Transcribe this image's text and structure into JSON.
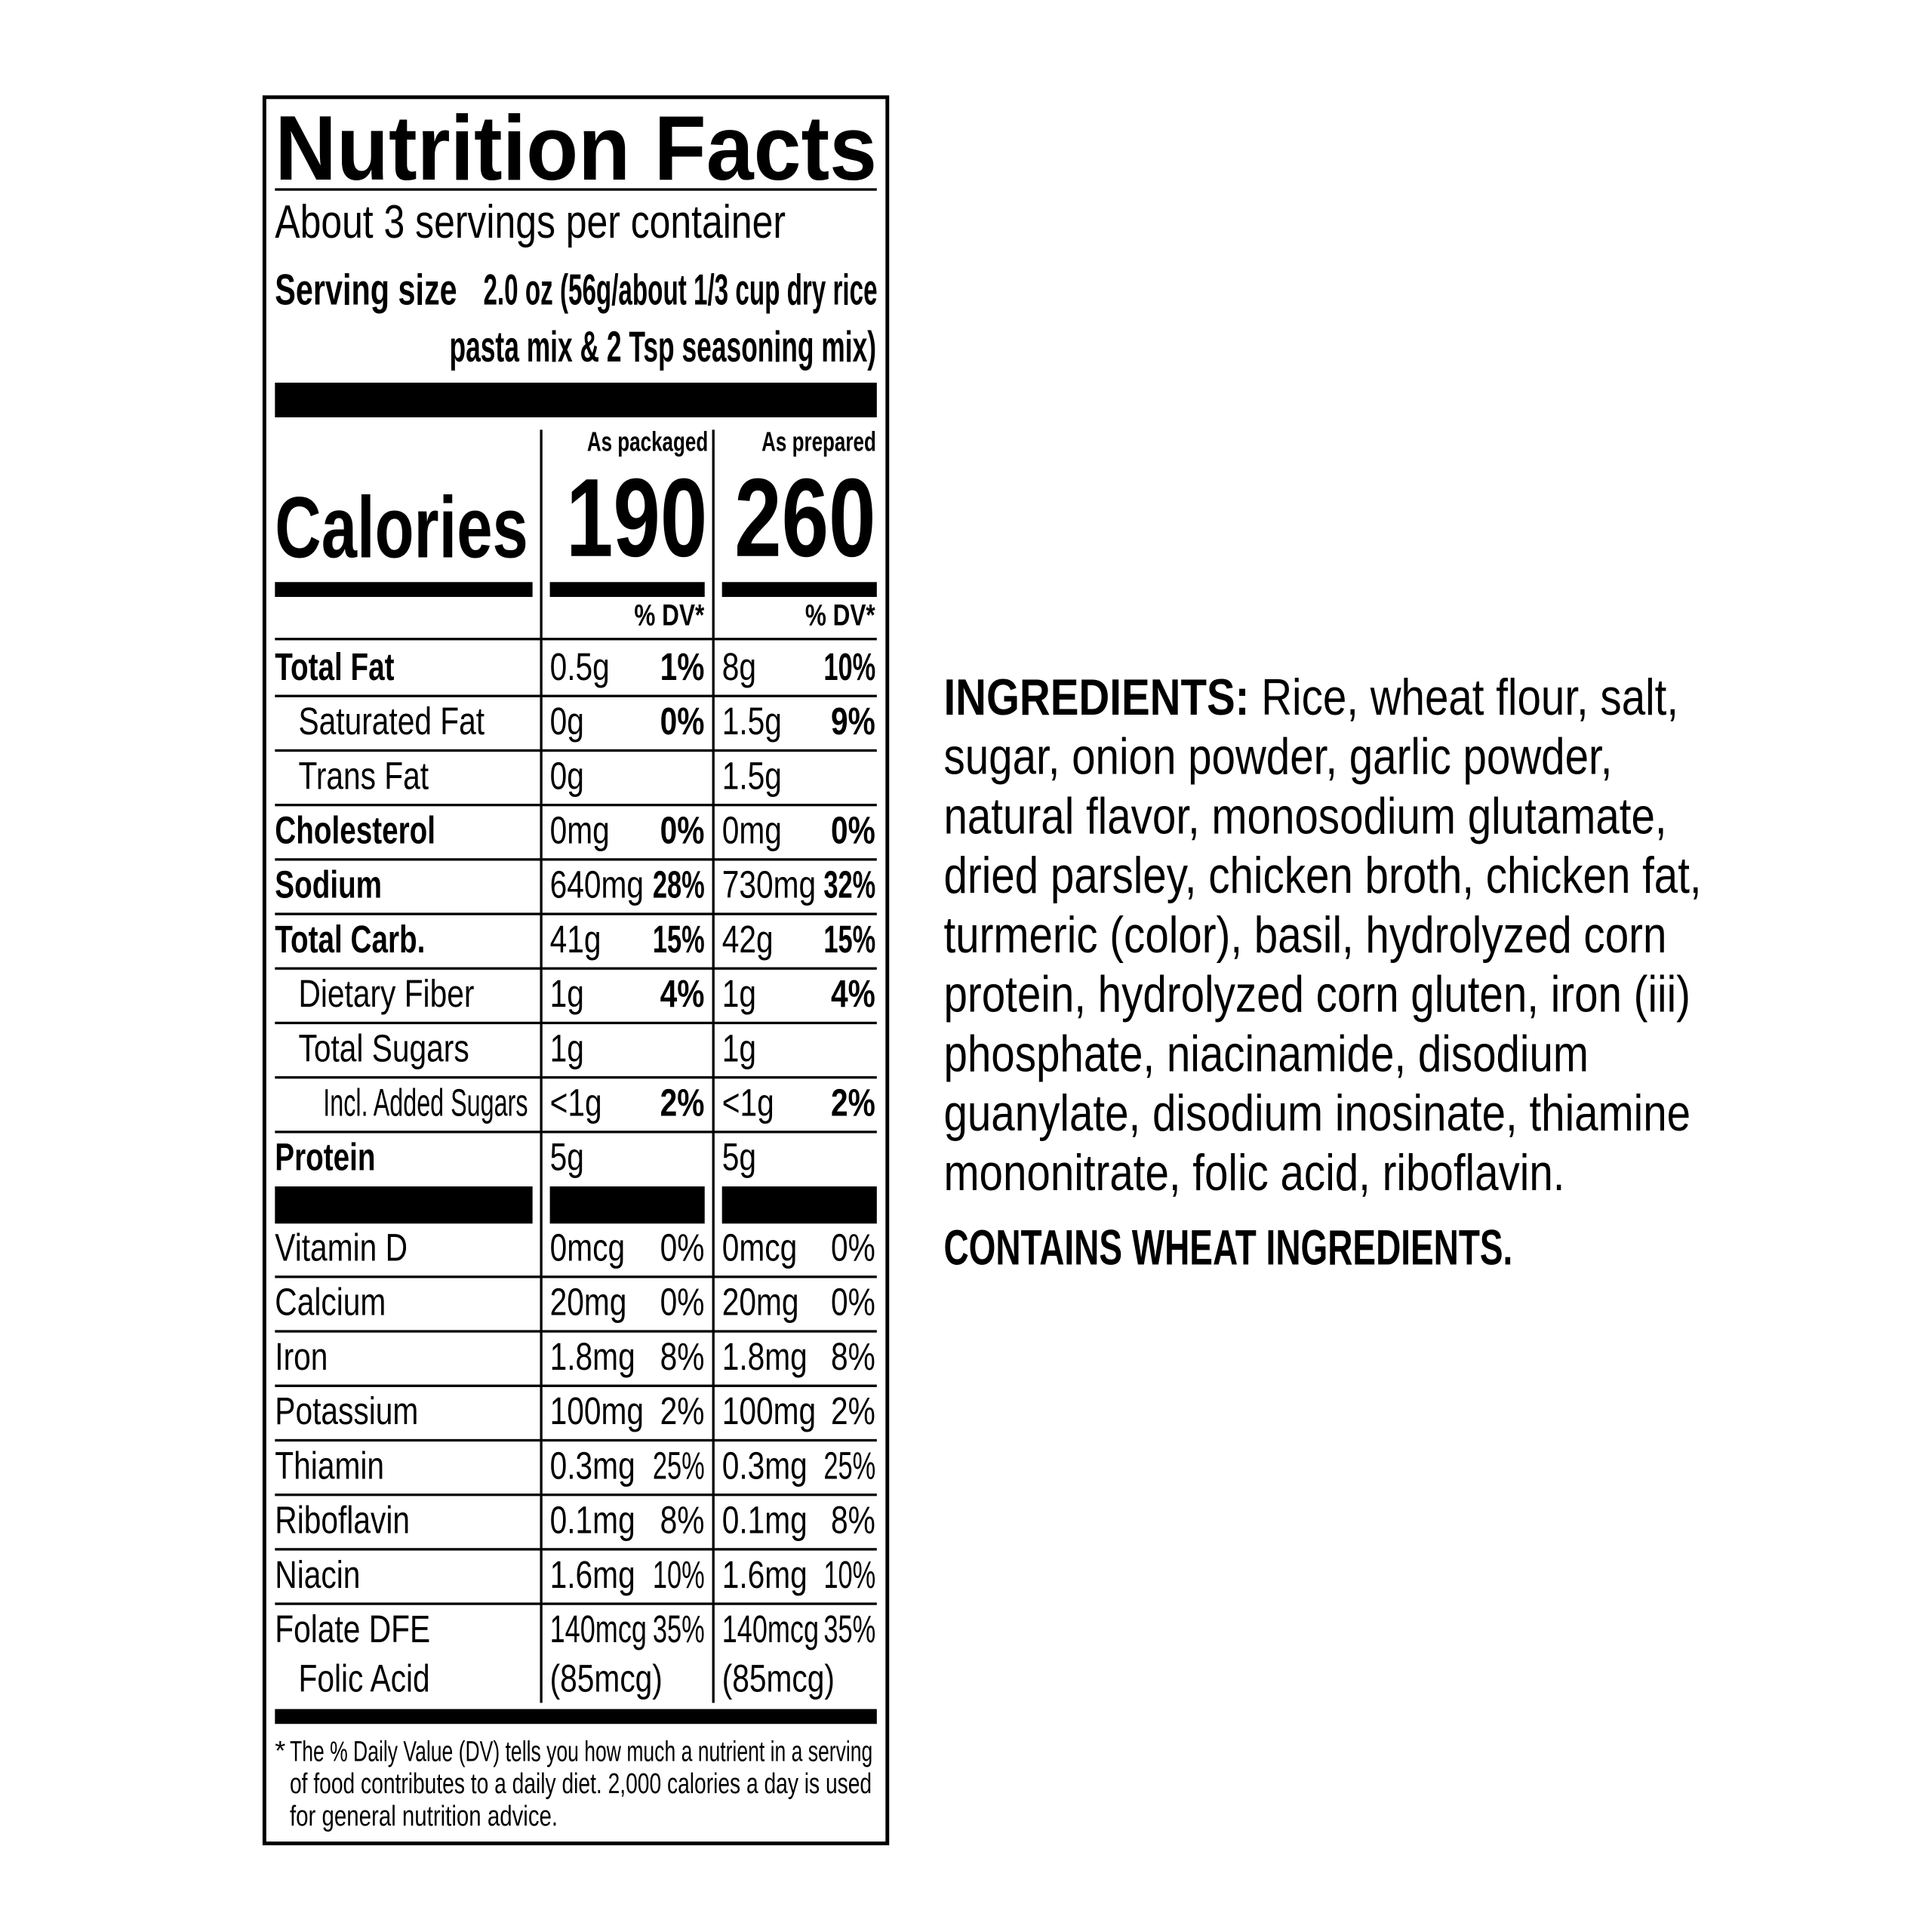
{
  "label": {
    "title": "Nutrition Facts",
    "servings": "About 3 servings per container",
    "serving_size_label": "Serving size",
    "serving_size_line1": "2.0 oz (56g/about 1/3 cup dry rice",
    "serving_size_line2": "pasta mix & 2 Tsp seasoning mix)",
    "col_packaged": "As packaged",
    "col_prepared": "As prepared",
    "calories_label": "Calories",
    "calories_packaged": "190",
    "calories_prepared": "260",
    "dv_header": "% DV*",
    "nutrients": [
      {
        "name": "Total Fat",
        "bold": true,
        "indent": 0,
        "pkg": "0.5g",
        "pkg_dv": "1%",
        "prep": "8g",
        "prep_dv": "10%"
      },
      {
        "name": "Saturated Fat",
        "bold": false,
        "indent": 1,
        "pkg": "0g",
        "pkg_dv": "0%",
        "prep": "1.5g",
        "prep_dv": "9%"
      },
      {
        "name": "Trans Fat",
        "bold": false,
        "indent": 1,
        "pkg": "0g",
        "pkg_dv": "",
        "prep": "1.5g",
        "prep_dv": ""
      },
      {
        "name": "Cholesterol",
        "bold": true,
        "indent": 0,
        "pkg": "0mg",
        "pkg_dv": "0%",
        "prep": "0mg",
        "prep_dv": "0%"
      },
      {
        "name": "Sodium",
        "bold": true,
        "indent": 0,
        "pkg": "640mg",
        "pkg_dv": "28%",
        "prep": "730mg",
        "prep_dv": "32%"
      },
      {
        "name": "Total Carb.",
        "bold": true,
        "indent": 0,
        "pkg": "41g",
        "pkg_dv": "15%",
        "prep": "42g",
        "prep_dv": "15%"
      },
      {
        "name": "Dietary Fiber",
        "bold": false,
        "indent": 1,
        "pkg": "1g",
        "pkg_dv": "4%",
        "prep": "1g",
        "prep_dv": "4%"
      },
      {
        "name": "Total Sugars",
        "bold": false,
        "indent": 1,
        "pkg": "1g",
        "pkg_dv": "",
        "prep": "1g",
        "prep_dv": ""
      },
      {
        "name": "Incl. Added Sugars",
        "bold": false,
        "indent": 2,
        "pkg": "<1g",
        "pkg_dv": "2%",
        "prep": "<1g",
        "prep_dv": "2%"
      },
      {
        "name": "Protein",
        "bold": true,
        "indent": 0,
        "pkg": "5g",
        "pkg_dv": "",
        "prep": "5g",
        "prep_dv": ""
      }
    ],
    "vitamins": [
      {
        "name": "Vitamin D",
        "pkg": "0mcg",
        "pkg_dv": "0%",
        "prep": "0mcg",
        "prep_dv": "0%"
      },
      {
        "name": "Calcium",
        "pkg": "20mg",
        "pkg_dv": "0%",
        "prep": "20mg",
        "prep_dv": "0%"
      },
      {
        "name": "Iron",
        "pkg": "1.8mg",
        "pkg_dv": "8%",
        "prep": "1.8mg",
        "prep_dv": "8%"
      },
      {
        "name": "Potassium",
        "pkg": "100mg",
        "pkg_dv": "2%",
        "prep": "100mg",
        "prep_dv": "2%"
      },
      {
        "name": "Thiamin",
        "pkg": "0.3mg",
        "pkg_dv": "25%",
        "prep": "0.3mg",
        "prep_dv": "25%"
      },
      {
        "name": "Riboflavin",
        "pkg": "0.1mg",
        "pkg_dv": "8%",
        "prep": "0.1mg",
        "prep_dv": "8%"
      },
      {
        "name": "Niacin",
        "pkg": "1.6mg",
        "pkg_dv": "10%",
        "prep": "1.6mg",
        "prep_dv": "10%"
      },
      {
        "name": "Folate DFE",
        "pkg": "140mcg",
        "pkg_dv": "35%",
        "prep": "140mcg",
        "prep_dv": "35%"
      }
    ],
    "folic_acid": {
      "name": "Folic Acid",
      "pkg": "(85mcg)",
      "prep": "(85mcg)"
    },
    "footnote_star": "*",
    "footnote_lines": [
      "The % Daily Value (DV) tells you how much a nutrient in a serving",
      "of food contributes to a daily diet. 2,000 calories a day is used",
      "for general nutrition advice."
    ]
  },
  "ingredients": {
    "heading": "INGREDIENTS:",
    "lines": [
      "Rice, wheat flour, salt,",
      "sugar, onion powder, garlic powder,",
      "natural flavor, monosodium glutamate,",
      "dried parsley, chicken broth, chicken fat,",
      "turmeric (color), basil, hydrolyzed corn",
      "protein, hydrolyzed corn gluten, iron (iii)",
      "phosphate, niacinamide, disodium",
      "guanylate, disodium inosinate, thiamine",
      "mononitrate, folic acid, riboflavin."
    ],
    "allergen": "CONTAINS WHEAT INGREDIENTS."
  }
}
